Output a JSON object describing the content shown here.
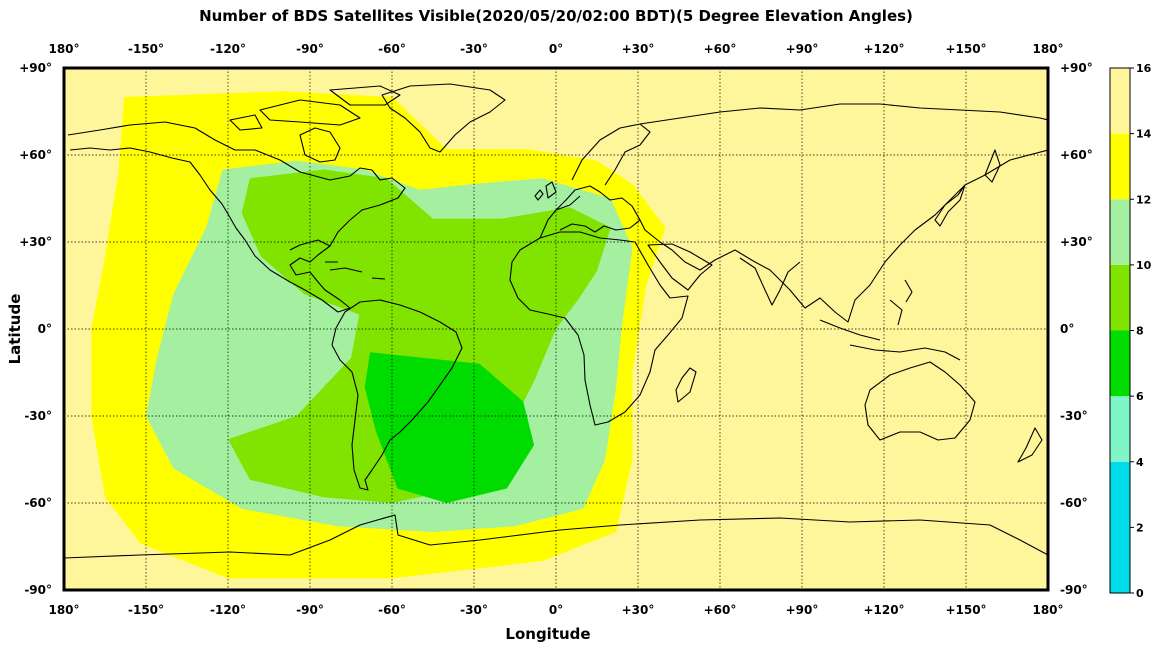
{
  "chart_data": {
    "type": "heatmap",
    "title": "Number of BDS Satellites Visible(2020/05/20/02:00 BDT)(5 Degree Elevation Angles)",
    "xlabel": "Longitude",
    "ylabel": "Latitude",
    "xlim": [
      -180,
      180
    ],
    "ylim": [
      -90,
      90
    ],
    "grid": true,
    "x_ticks": [
      {
        "value": -180,
        "label": "180°"
      },
      {
        "value": -150,
        "label": "-150°"
      },
      {
        "value": -120,
        "label": "-120°"
      },
      {
        "value": -90,
        "label": "-90°"
      },
      {
        "value": -60,
        "label": "-60°"
      },
      {
        "value": -30,
        "label": "-30°"
      },
      {
        "value": 0,
        "label": "0°"
      },
      {
        "value": 30,
        "label": "+30°"
      },
      {
        "value": 60,
        "label": "+60°"
      },
      {
        "value": 90,
        "label": "+90°"
      },
      {
        "value": 120,
        "label": "+120°"
      },
      {
        "value": 150,
        "label": "+150°"
      },
      {
        "value": 180,
        "label": "180°"
      }
    ],
    "y_ticks": [
      {
        "value": 90,
        "label": "+90°"
      },
      {
        "value": 60,
        "label": "+60°"
      },
      {
        "value": 30,
        "label": "+30°"
      },
      {
        "value": 0,
        "label": "0°"
      },
      {
        "value": -30,
        "label": "-30°"
      },
      {
        "value": -60,
        "label": "-60°"
      },
      {
        "value": -90,
        "label": "-90°"
      }
    ],
    "colorbar": {
      "range": [
        0,
        16
      ],
      "ticks": [
        "0",
        "2",
        "4",
        "6",
        "8",
        "10",
        "12",
        "14",
        "16"
      ],
      "bins": [
        {
          "from": 0,
          "to": 4,
          "color": "#00dde8"
        },
        {
          "from": 4,
          "to": 6,
          "color": "#7ff5c8"
        },
        {
          "from": 6,
          "to": 8,
          "color": "#00dc00"
        },
        {
          "from": 8,
          "to": 10,
          "color": "#80e400"
        },
        {
          "from": 10,
          "to": 12,
          "color": "#a4f0a0"
        },
        {
          "from": 12,
          "to": 14,
          "color": "#ffff00"
        },
        {
          "from": 14,
          "to": 16,
          "color": "#fff59b"
        }
      ]
    },
    "background_value_range": [
      14,
      16
    ],
    "regions": [
      {
        "value_range": [
          12,
          14
        ],
        "label": "yellow band",
        "lonlat": [
          [
            -158,
            80
          ],
          [
            -100,
            82
          ],
          [
            -60,
            80
          ],
          [
            -40,
            62
          ],
          [
            -10,
            62
          ],
          [
            15,
            58
          ],
          [
            28,
            50
          ],
          [
            40,
            35
          ],
          [
            33,
            15
          ],
          [
            28,
            -15
          ],
          [
            28,
            -45
          ],
          [
            22,
            -70
          ],
          [
            -5,
            -80
          ],
          [
            -60,
            -86
          ],
          [
            -120,
            -86
          ],
          [
            -152,
            -74
          ],
          [
            -165,
            -58
          ],
          [
            -170,
            -30
          ],
          [
            -170,
            0
          ],
          [
            -165,
            25
          ],
          [
            -160,
            55
          ]
        ]
      },
      {
        "value_range": [
          10,
          12
        ],
        "label": "light green region",
        "lonlat": [
          [
            -122,
            55
          ],
          [
            -95,
            58
          ],
          [
            -70,
            55
          ],
          [
            -50,
            48
          ],
          [
            -30,
            50
          ],
          [
            -5,
            52
          ],
          [
            20,
            45
          ],
          [
            28,
            28
          ],
          [
            24,
            0
          ],
          [
            22,
            -20
          ],
          [
            18,
            -45
          ],
          [
            10,
            -62
          ],
          [
            -15,
            -68
          ],
          [
            -45,
            -70
          ],
          [
            -80,
            -68
          ],
          [
            -115,
            -62
          ],
          [
            -140,
            -48
          ],
          [
            -150,
            -30
          ],
          [
            -146,
            -10
          ],
          [
            -140,
            12
          ],
          [
            -128,
            35
          ]
        ]
      },
      {
        "value_range": [
          8,
          10
        ],
        "label": "green region",
        "lonlat": [
          [
            -112,
            52
          ],
          [
            -85,
            55
          ],
          [
            -62,
            52
          ],
          [
            -45,
            38
          ],
          [
            -20,
            38
          ],
          [
            5,
            42
          ],
          [
            20,
            35
          ],
          [
            15,
            20
          ],
          [
            8,
            10
          ],
          [
            0,
            0
          ],
          [
            -8,
            -18
          ],
          [
            -20,
            -40
          ],
          [
            -35,
            -55
          ],
          [
            -60,
            -60
          ],
          [
            -85,
            -58
          ],
          [
            -112,
            -52
          ],
          [
            -120,
            -38
          ],
          [
            -95,
            -30
          ],
          [
            -75,
            -10
          ],
          [
            -72,
            5
          ],
          [
            -92,
            12
          ],
          [
            -108,
            25
          ],
          [
            -115,
            40
          ]
        ]
      },
      {
        "value_range": [
          6,
          8
        ],
        "label": "darker green region",
        "lonlat": [
          [
            -68,
            -8
          ],
          [
            -48,
            -10
          ],
          [
            -28,
            -12
          ],
          [
            -12,
            -25
          ],
          [
            -8,
            -40
          ],
          [
            -18,
            -55
          ],
          [
            -40,
            -60
          ],
          [
            -58,
            -55
          ],
          [
            -66,
            -35
          ],
          [
            -70,
            -20
          ]
        ]
      }
    ]
  }
}
